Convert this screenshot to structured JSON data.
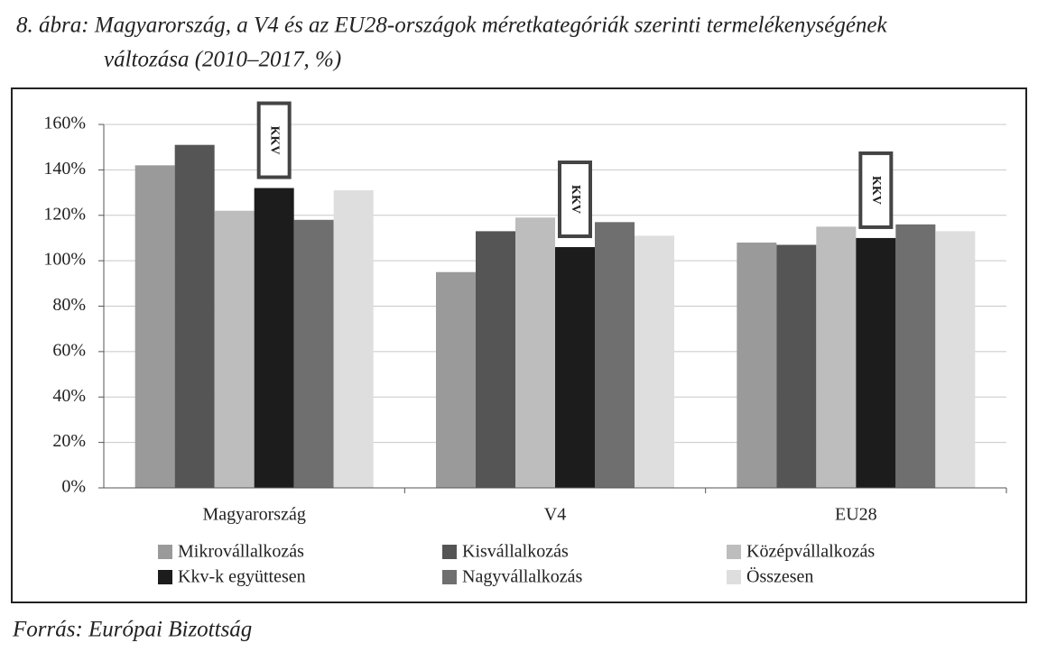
{
  "chart_data": {
    "type": "bar",
    "title": [
      "8. ábra: Magyarország, a V4 és az EU28-országok méretkategóriák szerinti termelékenységének",
      "változása (2010–2017, %)"
    ],
    "source": "Forrás: Európai Bizottság",
    "categories": [
      "Magyarország",
      "V4",
      "EU28"
    ],
    "series": [
      {
        "name": "Mikrovállalkozás",
        "color": "#9a9a9a",
        "values": [
          142,
          95,
          108
        ]
      },
      {
        "name": "Kisvállalkozás",
        "color": "#555555",
        "values": [
          151,
          113,
          107
        ]
      },
      {
        "name": "Középvállalkozás",
        "color": "#bdbdbd",
        "values": [
          122,
          119,
          115
        ]
      },
      {
        "name": "Kkv-k együttesen",
        "color": "#1c1c1c",
        "values": [
          132,
          106,
          110
        ]
      },
      {
        "name": "Nagyvállalkozás",
        "color": "#6f6f6f",
        "values": [
          118,
          117,
          116
        ]
      },
      {
        "name": "Összesen",
        "color": "#dedede",
        "values": [
          131,
          111,
          113
        ]
      }
    ],
    "annotations": [
      "KKV",
      "KKV",
      "KKV"
    ],
    "ylim": [
      0,
      160
    ],
    "yticks": [
      {
        "value": 0,
        "label": "0%"
      },
      {
        "value": 20,
        "label": "20%"
      },
      {
        "value": 40,
        "label": "40%"
      },
      {
        "value": 60,
        "label": "60%"
      },
      {
        "value": 80,
        "label": "80%"
      },
      {
        "value": 100,
        "label": "100%"
      },
      {
        "value": 120,
        "label": "120%"
      },
      {
        "value": 140,
        "label": "140%"
      },
      {
        "value": 160,
        "label": "160%"
      }
    ],
    "grid": true
  }
}
